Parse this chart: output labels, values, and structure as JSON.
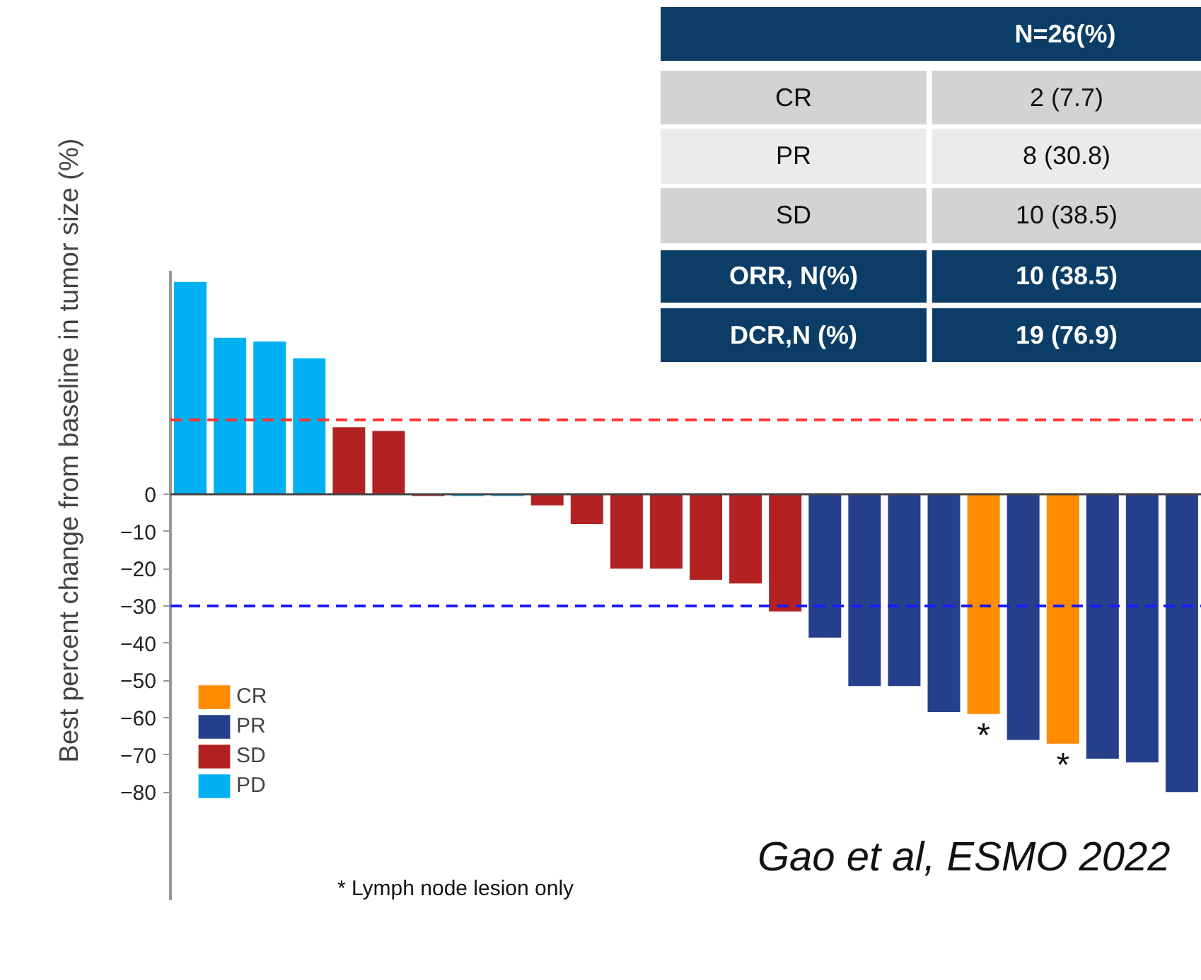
{
  "chart_data": {
    "type": "bar",
    "ylabel": "Best percent change from baseline in tumor size (%)",
    "categories": [
      null,
      null,
      null,
      null,
      null,
      null,
      null,
      null,
      null,
      null,
      null,
      null,
      null,
      null,
      null,
      null,
      null,
      null,
      null,
      null,
      null,
      null,
      null,
      null,
      null,
      null
    ],
    "series": [
      {
        "name": "CR",
        "color": "#ff8c00",
        "values": [
          null,
          null,
          null,
          null,
          null,
          null,
          null,
          null,
          null,
          null,
          null,
          null,
          null,
          null,
          null,
          null,
          null,
          null,
          null,
          null,
          -59,
          null,
          -67,
          null,
          null,
          null
        ]
      },
      {
        "name": "PR",
        "color": "#27408b",
        "values": [
          null,
          null,
          null,
          null,
          null,
          null,
          null,
          null,
          null,
          null,
          null,
          null,
          null,
          null,
          null,
          null,
          -38.5,
          -51.5,
          -51.5,
          -58.5,
          null,
          -66,
          null,
          -71,
          -72,
          -80
        ]
      },
      {
        "name": "SD",
        "color": "#b22222",
        "values": [
          null,
          null,
          null,
          null,
          18,
          17,
          -0.5,
          null,
          null,
          -3,
          -8,
          -20,
          -20,
          -23,
          -24,
          -31.5,
          null,
          null,
          null,
          null,
          null,
          null,
          null,
          null,
          null,
          null
        ]
      },
      {
        "name": "PD",
        "color": "#00b0f0",
        "values": [
          57,
          42,
          41,
          36.5,
          null,
          null,
          null,
          -0.5,
          -0.5,
          null,
          null,
          null,
          null,
          null,
          null,
          null,
          null,
          null,
          null,
          null,
          null,
          null,
          null,
          null,
          null,
          null
        ]
      }
    ],
    "ylim": [
      -109,
      60
    ],
    "yticks": [
      0,
      -10,
      -20,
      -30,
      -40,
      -50,
      -60,
      -70,
      -80
    ],
    "ref_lines": [
      {
        "axis": "y",
        "value": 20,
        "color": "#ff3333",
        "line_style": "dashed"
      },
      {
        "axis": "y",
        "value": -30,
        "color": "#1a1aff",
        "line_style": "dashed"
      }
    ],
    "grid": false,
    "legend": "left",
    "annotations": [
      "N=26(%)",
      "CR",
      "2 (7.7)",
      "PR",
      "8 (30.8)",
      "SD",
      "10 (38.5)",
      "ORR, N(%)",
      "10 (38.5)",
      "DCR,N (%)",
      "19 (76.9)",
      "Gao et al, ESMO 2022",
      "* Lymph node lesion only",
      {
        "text": "*",
        "y": -59
      },
      {
        "text": "*",
        "y": -67
      }
    ]
  }
}
